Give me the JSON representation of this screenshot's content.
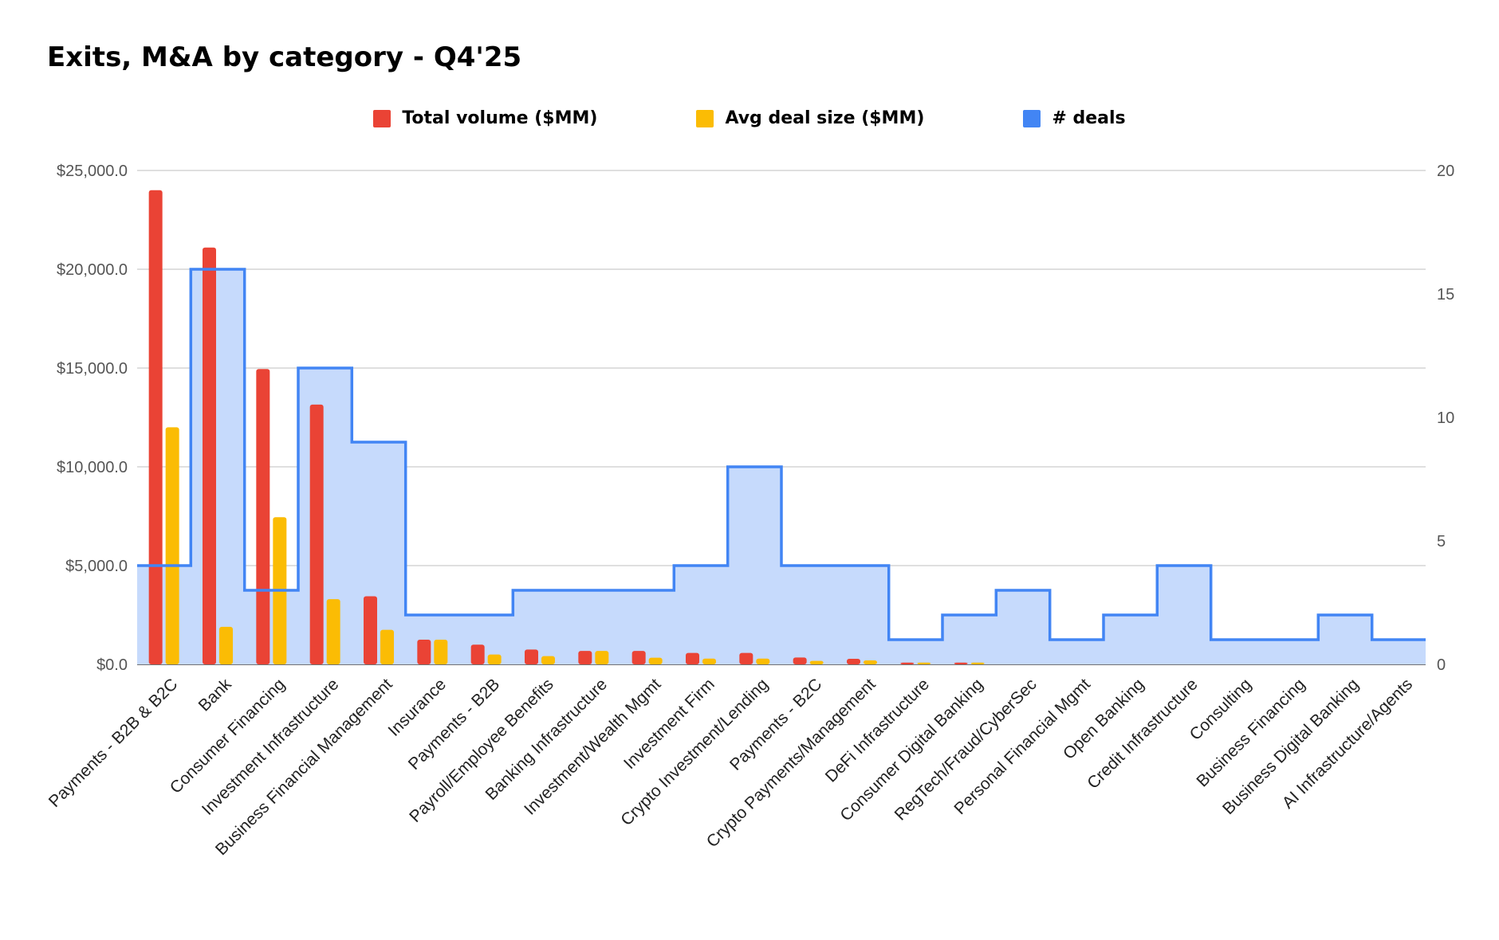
{
  "chart_data": {
    "type": "bar",
    "title": "Exits, M&A by category - Q4'25",
    "legend_position": "top-center",
    "grid": true,
    "categories": [
      "Payments - B2B & B2C",
      "Bank",
      "Consumer Financing",
      "Investment Infrastructure",
      "Business Financial Management",
      "Insurance",
      "Payments - B2B",
      "Payroll/Employee Benefits",
      "Banking Infrastructure",
      "Investment/Wealth Mgmt",
      "Investment Firm",
      "Crypto Investment/Lending",
      "Payments - B2C",
      "Crypto Payments/Management",
      "DeFi Infrastructure",
      "Consumer Digital Banking",
      "RegTech/Fraud/CyberSec",
      "Personal Financial Mgmt",
      "Open Banking",
      "Credit Infrastructure",
      "Consulting",
      "Business Financing",
      "Business Digital Banking",
      "AI Infrastructure/Agents"
    ],
    "series": [
      {
        "name": "Total volume ($MM)",
        "axis": "left",
        "render": "bar",
        "color": "#EA4335",
        "values": [
          24000,
          21100,
          14950,
          13150,
          3450,
          1250,
          1000,
          750,
          680,
          680,
          580,
          580,
          350,
          280,
          90,
          90,
          0,
          0,
          0,
          0,
          0,
          0,
          0,
          0
        ]
      },
      {
        "name": "Avg deal size ($MM)",
        "axis": "left",
        "render": "bar",
        "color": "#FBBC04",
        "values": [
          12000,
          1900,
          7450,
          3300,
          1750,
          1250,
          500,
          420,
          680,
          340,
          290,
          290,
          175,
          200,
          90,
          90,
          0,
          0,
          0,
          0,
          0,
          0,
          0,
          0
        ]
      },
      {
        "name": "# deals",
        "axis": "right",
        "render": "stepped-area",
        "color": "#4285F4",
        "fill": "#C6DAFC",
        "values": [
          4,
          16,
          3,
          12,
          9,
          2,
          2,
          3,
          3,
          3,
          4,
          8,
          4,
          4,
          1,
          2,
          3,
          1,
          2,
          4,
          1,
          1,
          2,
          1
        ]
      }
    ],
    "y_left": {
      "min": 0,
      "max": 25000,
      "ticks": [
        "$0.0",
        "$5,000.0",
        "$10,000.0",
        "$15,000.0",
        "$20,000.0",
        "$25,000.0"
      ],
      "tick_values": [
        0,
        5000,
        10000,
        15000,
        20000,
        25000
      ]
    },
    "y_right": {
      "min": 0,
      "max": 20,
      "ticks": [
        "0",
        "5",
        "10",
        "15",
        "20"
      ],
      "tick_values": [
        0,
        5,
        10,
        15,
        20
      ]
    },
    "xlabel": "",
    "ylabel": ""
  }
}
